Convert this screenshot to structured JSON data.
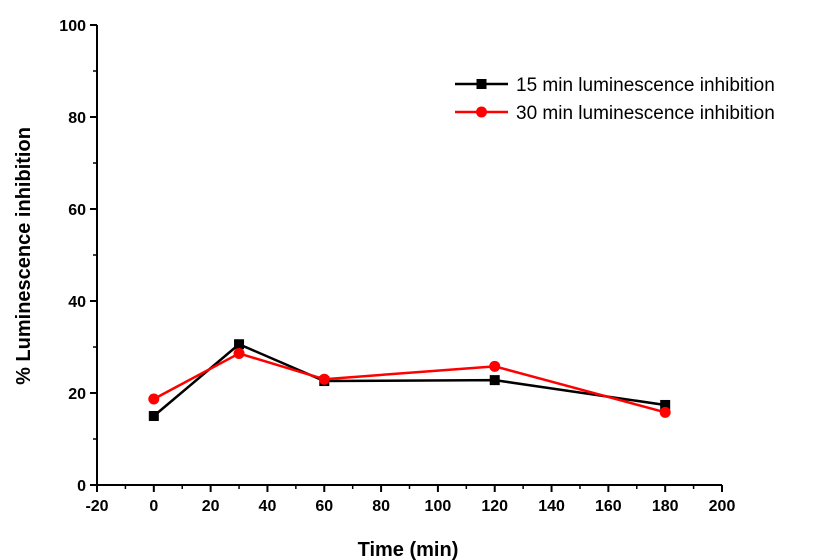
{
  "chart_data": {
    "type": "line",
    "title": "",
    "xlabel": "Time (min)",
    "ylabel": "% Luminescence inhibition",
    "xlim": [
      -20,
      200
    ],
    "ylim": [
      0,
      100
    ],
    "x_ticks": [
      -20,
      0,
      20,
      40,
      60,
      80,
      100,
      120,
      140,
      160,
      180,
      200
    ],
    "y_ticks": [
      0,
      20,
      40,
      60,
      80,
      100
    ],
    "grid": false,
    "legend_position": "top-right",
    "x": [
      0,
      30,
      60,
      120,
      180
    ],
    "series": [
      {
        "name": "15 min luminescence inhibition",
        "color": "#000000",
        "marker": "square",
        "values": [
          15.0,
          30.6,
          22.6,
          22.8,
          17.4
        ]
      },
      {
        "name": "30 min luminescence inhibition",
        "color": "#ff0000",
        "marker": "circle",
        "values": [
          18.7,
          28.6,
          23.0,
          25.8,
          15.8
        ]
      }
    ]
  }
}
